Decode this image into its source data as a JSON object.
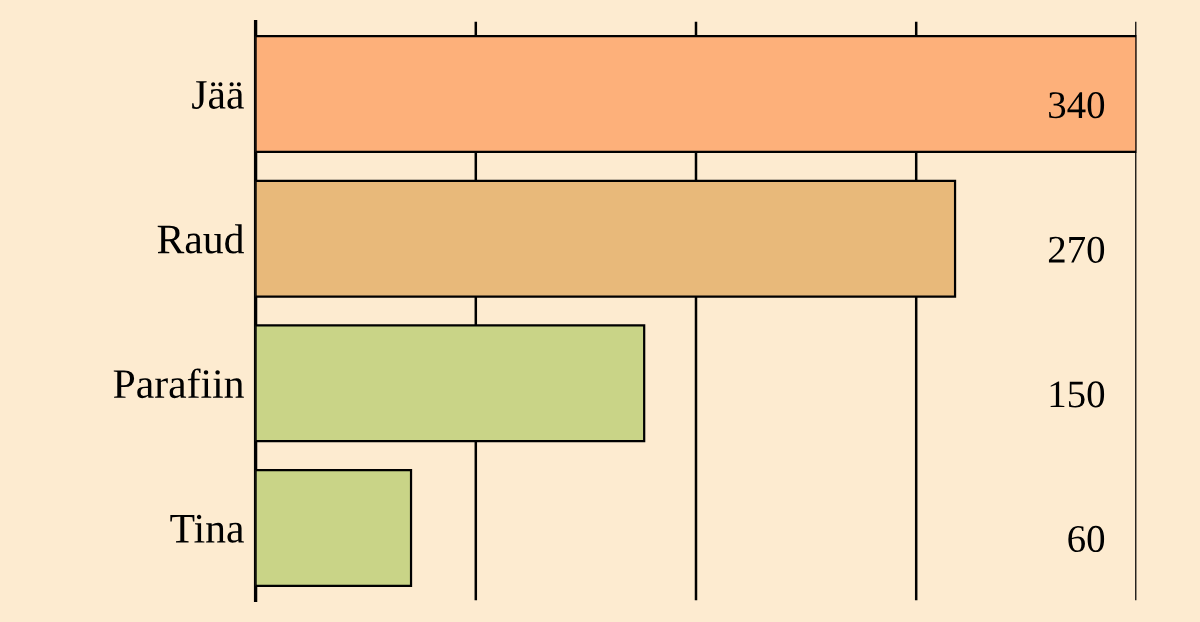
{
  "chart_data": {
    "type": "bar",
    "orientation": "horizontal",
    "categories": [
      "Jää",
      "Raud",
      "Parafiin",
      "Tina"
    ],
    "values": [
      340,
      270,
      150,
      60
    ],
    "colors": [
      "#fdb07a",
      "#e8b97a",
      "#c9d487",
      "#c9d487"
    ],
    "value_labels": [
      "340",
      "270",
      "150",
      "60"
    ],
    "xlim": [
      0,
      340
    ],
    "xticks": [
      {
        "value": 85,
        "label": null
      },
      {
        "value": 170,
        "label": null
      },
      {
        "value": 255,
        "label": null
      },
      {
        "value": 340,
        "label": null
      }
    ],
    "grid": "x",
    "tick_labels": "y"
  }
}
